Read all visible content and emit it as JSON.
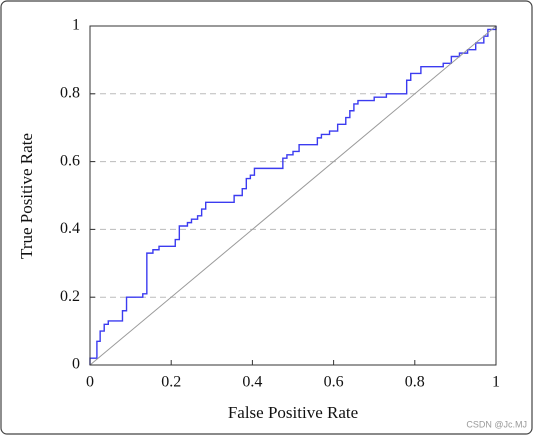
{
  "chart_data": {
    "type": "line",
    "xlabel": "False Positive Rate",
    "ylabel": "True Positive Rate",
    "xlim": [
      0,
      1
    ],
    "ylim": [
      0,
      1
    ],
    "xticks": [
      0,
      0.2,
      0.4,
      0.6,
      0.8,
      1
    ],
    "yticks": [
      0,
      0.2,
      0.4,
      0.6,
      0.8,
      1
    ],
    "grid": true,
    "series": [
      {
        "color": "#3b3bf0",
        "x": [
          0,
          0,
          0.017,
          0.017,
          0.025,
          0.025,
          0.035,
          0.035,
          0.045,
          0.045,
          0.08,
          0.08,
          0.09,
          0.09,
          0.13,
          0.13,
          0.14,
          0.14,
          0.155,
          0.155,
          0.17,
          0.17,
          0.21,
          0.21,
          0.22,
          0.22,
          0.24,
          0.24,
          0.25,
          0.25,
          0.265,
          0.265,
          0.275,
          0.275,
          0.285,
          0.285,
          0.355,
          0.355,
          0.375,
          0.375,
          0.385,
          0.385,
          0.395,
          0.395,
          0.405,
          0.405,
          0.475,
          0.475,
          0.485,
          0.485,
          0.5,
          0.5,
          0.515,
          0.515,
          0.56,
          0.56,
          0.57,
          0.57,
          0.59,
          0.59,
          0.61,
          0.61,
          0.63,
          0.63,
          0.64,
          0.64,
          0.65,
          0.65,
          0.66,
          0.66,
          0.7,
          0.7,
          0.73,
          0.73,
          0.78,
          0.78,
          0.79,
          0.79,
          0.815,
          0.815,
          0.87,
          0.87,
          0.89,
          0.89,
          0.91,
          0.91,
          0.93,
          0.93,
          0.95,
          0.95,
          0.97,
          0.97,
          0.98,
          0.98,
          1,
          1
        ],
        "values": [
          0,
          0.02,
          0.02,
          0.07,
          0.07,
          0.1,
          0.1,
          0.12,
          0.12,
          0.13,
          0.13,
          0.16,
          0.16,
          0.2,
          0.2,
          0.21,
          0.21,
          0.33,
          0.33,
          0.34,
          0.34,
          0.35,
          0.35,
          0.37,
          0.37,
          0.41,
          0.41,
          0.42,
          0.42,
          0.43,
          0.43,
          0.44,
          0.44,
          0.46,
          0.46,
          0.48,
          0.48,
          0.5,
          0.5,
          0.52,
          0.52,
          0.55,
          0.55,
          0.56,
          0.56,
          0.58,
          0.58,
          0.61,
          0.61,
          0.62,
          0.62,
          0.63,
          0.63,
          0.65,
          0.65,
          0.67,
          0.67,
          0.68,
          0.68,
          0.69,
          0.69,
          0.71,
          0.71,
          0.73,
          0.73,
          0.75,
          0.75,
          0.77,
          0.77,
          0.78,
          0.78,
          0.79,
          0.79,
          0.8,
          0.8,
          0.84,
          0.84,
          0.86,
          0.86,
          0.88,
          0.88,
          0.89,
          0.89,
          0.91,
          0.91,
          0.92,
          0.92,
          0.93,
          0.93,
          0.95,
          0.95,
          0.97,
          0.97,
          0.99,
          0.99,
          1
        ]
      },
      {
        "color": "#9a9a9a",
        "x": [
          0,
          1
        ],
        "values": [
          0,
          1
        ]
      }
    ]
  },
  "watermark": "CSDN @Jc.MJ"
}
